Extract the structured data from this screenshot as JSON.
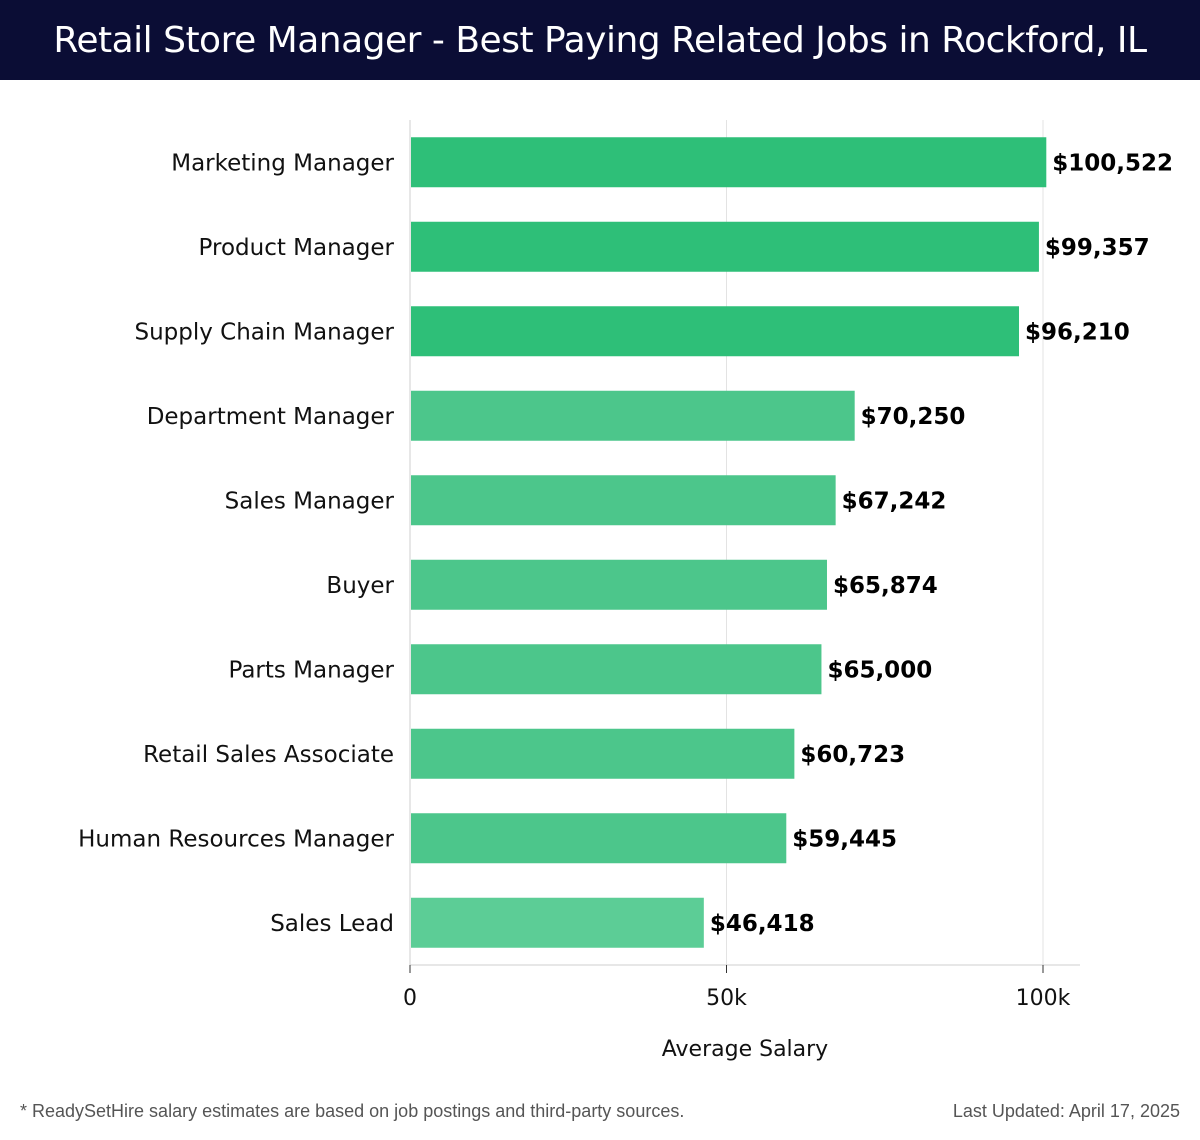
{
  "header": {
    "title": "Retail Store Manager - Best Paying Related Jobs in Rockford, IL"
  },
  "chart_data": {
    "type": "bar",
    "orientation": "horizontal",
    "title": "Retail Store Manager - Best Paying Related Jobs in Rockford, IL",
    "xlabel": "Average Salary",
    "ylabel": "",
    "xlim": [
      0,
      106000
    ],
    "xticks": [
      0,
      50000,
      100000
    ],
    "xtick_labels": [
      "0",
      "50k",
      "100k"
    ],
    "grid": true,
    "categories": [
      "Marketing Manager",
      "Product Manager",
      "Supply Chain Manager",
      "Department Manager",
      "Sales Manager",
      "Buyer",
      "Parts Manager",
      "Retail Sales Associate",
      "Human Resources Manager",
      "Sales Lead"
    ],
    "values": [
      100522,
      99357,
      96210,
      70250,
      67242,
      65874,
      65000,
      60723,
      59445,
      46418
    ],
    "value_labels": [
      "$100,522",
      "$99,357",
      "$96,210",
      "$70,250",
      "$67,242",
      "$65,874",
      "$65,000",
      "$60,723",
      "$59,445",
      "$46,418"
    ],
    "colors": {
      "top": "#2ebf78",
      "rest": "#4cc68b",
      "last": "#5ccd96"
    }
  },
  "footer": {
    "note": "* ReadySetHire salary estimates are based on job postings and third-party sources.",
    "updated": "Last Updated: April 17, 2025"
  }
}
